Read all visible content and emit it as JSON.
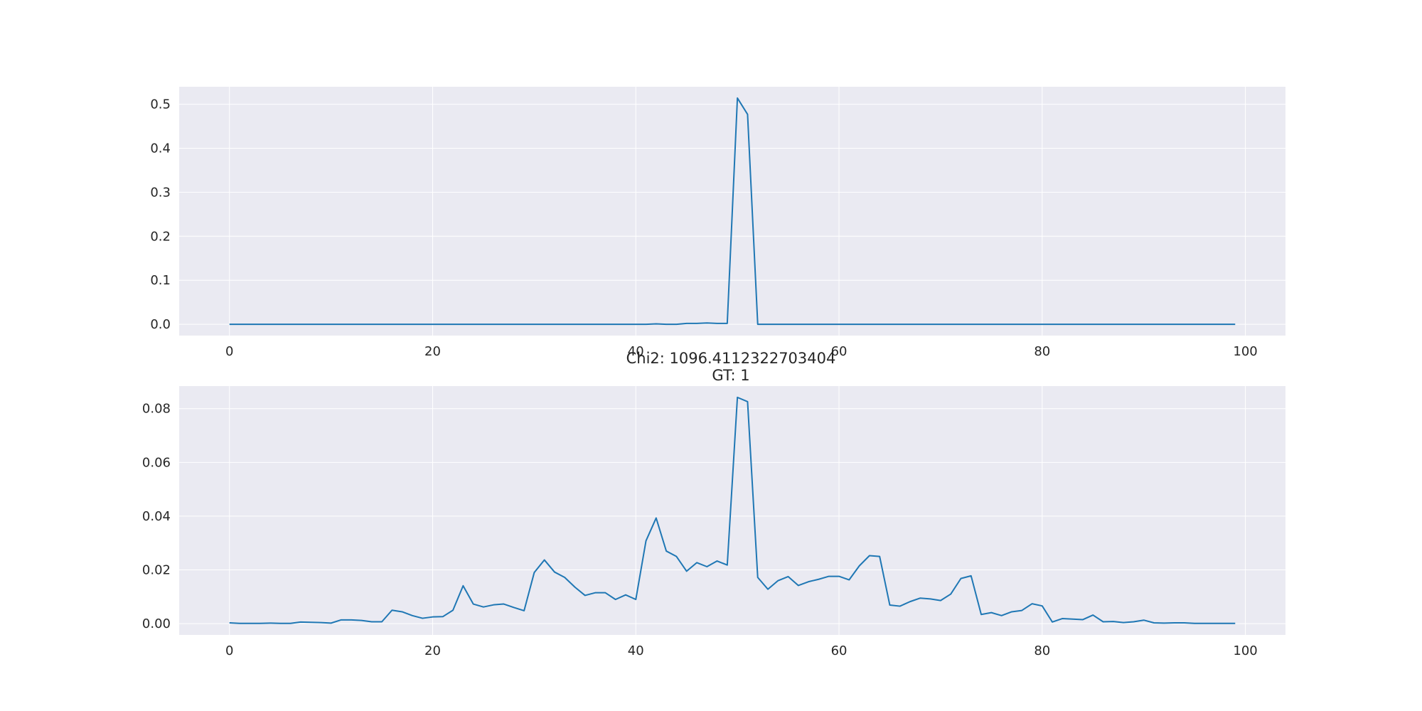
{
  "figure": {
    "middle_title_line1": "Chi2: 1096.4112322703404",
    "middle_title_line2": "GT: 1"
  },
  "chart_data": [
    {
      "type": "line",
      "title": "",
      "xlabel": "",
      "ylabel": "",
      "xlim": [
        -4.95,
        103.95
      ],
      "ylim": [
        -0.0257,
        0.5397
      ],
      "xticks": [
        0,
        20,
        40,
        60,
        80,
        100
      ],
      "xtick_labels": [
        "0",
        "20",
        "40",
        "60",
        "80",
        "100"
      ],
      "yticks": [
        0.0,
        0.1,
        0.2,
        0.3,
        0.4,
        0.5
      ],
      "ytick_labels": [
        "0.0",
        "0.1",
        "0.2",
        "0.3",
        "0.4",
        "0.5"
      ],
      "grid": true,
      "line_color": "#1f77b4",
      "x": [
        0,
        1,
        2,
        3,
        4,
        5,
        6,
        7,
        8,
        9,
        10,
        11,
        12,
        13,
        14,
        15,
        16,
        17,
        18,
        19,
        20,
        21,
        22,
        23,
        24,
        25,
        26,
        27,
        28,
        29,
        30,
        31,
        32,
        33,
        34,
        35,
        36,
        37,
        38,
        39,
        40,
        41,
        42,
        43,
        44,
        45,
        46,
        47,
        48,
        49,
        50,
        51,
        52,
        53,
        54,
        55,
        56,
        57,
        58,
        59,
        60,
        61,
        62,
        63,
        64,
        65,
        66,
        67,
        68,
        69,
        70,
        71,
        72,
        73,
        74,
        75,
        76,
        77,
        78,
        79,
        80,
        81,
        82,
        83,
        84,
        85,
        86,
        87,
        88,
        89,
        90,
        91,
        92,
        93,
        94,
        95,
        96,
        97,
        98,
        99
      ],
      "y": [
        0,
        0,
        0,
        0,
        0,
        0,
        0,
        0,
        0,
        0,
        0,
        0,
        0,
        0,
        0,
        0,
        0,
        0,
        0,
        0,
        0,
        0,
        0,
        0,
        0,
        0,
        0,
        0,
        0,
        0,
        0,
        0,
        0,
        0,
        0,
        0,
        0,
        0,
        0,
        0,
        0,
        0,
        0.001,
        0,
        0,
        0.002,
        0.002,
        0.003,
        0.002,
        0.002,
        0.514,
        0.477,
        0,
        0,
        0,
        0,
        0,
        0,
        0,
        0,
        0,
        0,
        0,
        0,
        0,
        0,
        0,
        0,
        0,
        0,
        0,
        0,
        0,
        0,
        0,
        0,
        0,
        0,
        0,
        0,
        0,
        0,
        0,
        0,
        0,
        0,
        0,
        0,
        0,
        0,
        0,
        0,
        0,
        0,
        0,
        0,
        0,
        0,
        0,
        0
      ]
    },
    {
      "type": "line",
      "title": "",
      "xlabel": "",
      "ylabel": "",
      "xlim": [
        -4.95,
        103.95
      ],
      "ylim": [
        -0.0042,
        0.0884
      ],
      "xticks": [
        0,
        20,
        40,
        60,
        80,
        100
      ],
      "xtick_labels": [
        "0",
        "20",
        "40",
        "60",
        "80",
        "100"
      ],
      "yticks": [
        0.0,
        0.02,
        0.04,
        0.06,
        0.08
      ],
      "ytick_labels": [
        "0.00",
        "0.02",
        "0.04",
        "0.06",
        "0.08"
      ],
      "grid": true,
      "line_color": "#1f77b4",
      "x": [
        0,
        1,
        2,
        3,
        4,
        5,
        6,
        7,
        8,
        9,
        10,
        11,
        12,
        13,
        14,
        15,
        16,
        17,
        18,
        19,
        20,
        21,
        22,
        23,
        24,
        25,
        26,
        27,
        28,
        29,
        30,
        31,
        32,
        33,
        34,
        35,
        36,
        37,
        38,
        39,
        40,
        41,
        42,
        43,
        44,
        45,
        46,
        47,
        48,
        49,
        50,
        51,
        52,
        53,
        54,
        55,
        56,
        57,
        58,
        59,
        60,
        61,
        62,
        63,
        64,
        65,
        66,
        67,
        68,
        69,
        70,
        71,
        72,
        73,
        74,
        75,
        76,
        77,
        78,
        79,
        80,
        81,
        82,
        83,
        84,
        85,
        86,
        87,
        88,
        89,
        90,
        91,
        92,
        93,
        94,
        95,
        96,
        97,
        98,
        99
      ],
      "y": [
        0.0003,
        0.0001,
        0.0001,
        0.0001,
        0.0002,
        0.0001,
        0.0001,
        0.0006,
        0.0005,
        0.0004,
        0.0002,
        0.0014,
        0.0014,
        0.0012,
        0.0007,
        0.0007,
        0.005,
        0.0044,
        0.003,
        0.002,
        0.0025,
        0.0026,
        0.005,
        0.0141,
        0.0073,
        0.0062,
        0.007,
        0.0073,
        0.006,
        0.0048,
        0.019,
        0.0237,
        0.0192,
        0.0172,
        0.0136,
        0.0105,
        0.0115,
        0.0115,
        0.009,
        0.0107,
        0.009,
        0.0308,
        0.0393,
        0.027,
        0.025,
        0.0195,
        0.0227,
        0.0212,
        0.0233,
        0.0218,
        0.0842,
        0.0826,
        0.0172,
        0.0128,
        0.016,
        0.0175,
        0.0142,
        0.0156,
        0.0165,
        0.0176,
        0.0176,
        0.0163,
        0.0215,
        0.0253,
        0.025,
        0.0069,
        0.0065,
        0.0082,
        0.0095,
        0.0092,
        0.0086,
        0.011,
        0.0168,
        0.0178,
        0.0034,
        0.0041,
        0.003,
        0.0044,
        0.0049,
        0.0074,
        0.0066,
        0.0006,
        0.0019,
        0.0017,
        0.0015,
        0.0032,
        0.0007,
        0.0008,
        0.0004,
        0.0007,
        0.0013,
        0.0003,
        0.0002,
        0.0003,
        0.0003,
        0.0001,
        0.0001,
        0.0001,
        0.0001,
        0.0001
      ]
    }
  ]
}
